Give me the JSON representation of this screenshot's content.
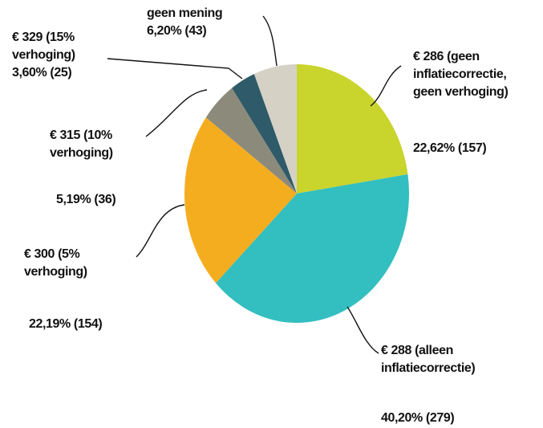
{
  "chart_data": {
    "type": "pie",
    "categories": [
      "€ 286 (geen\ninflatiecorrectie,\ngeen verhoging)",
      "€ 288 (alleen\ninflatiecorrectie)",
      "€ 300 (5%\nverhoging)",
      "€ 315 (10%\nverhoging)",
      "€ 329 (15%\nverhoging)",
      "geen mening"
    ],
    "values": [
      22.62,
      40.2,
      22.19,
      5.19,
      3.6,
      6.2
    ],
    "value_labels": [
      "22,62% (157)",
      "40,20% (279)",
      "22,19% (154)",
      "5,19% (36)",
      "3,60% (25)",
      "6,20% (43)"
    ],
    "colors": [
      "#c9d42d",
      "#33bec0",
      "#f5ad20",
      "#8c8b7b",
      "#2e5a69",
      "#d5d1c5"
    ]
  }
}
